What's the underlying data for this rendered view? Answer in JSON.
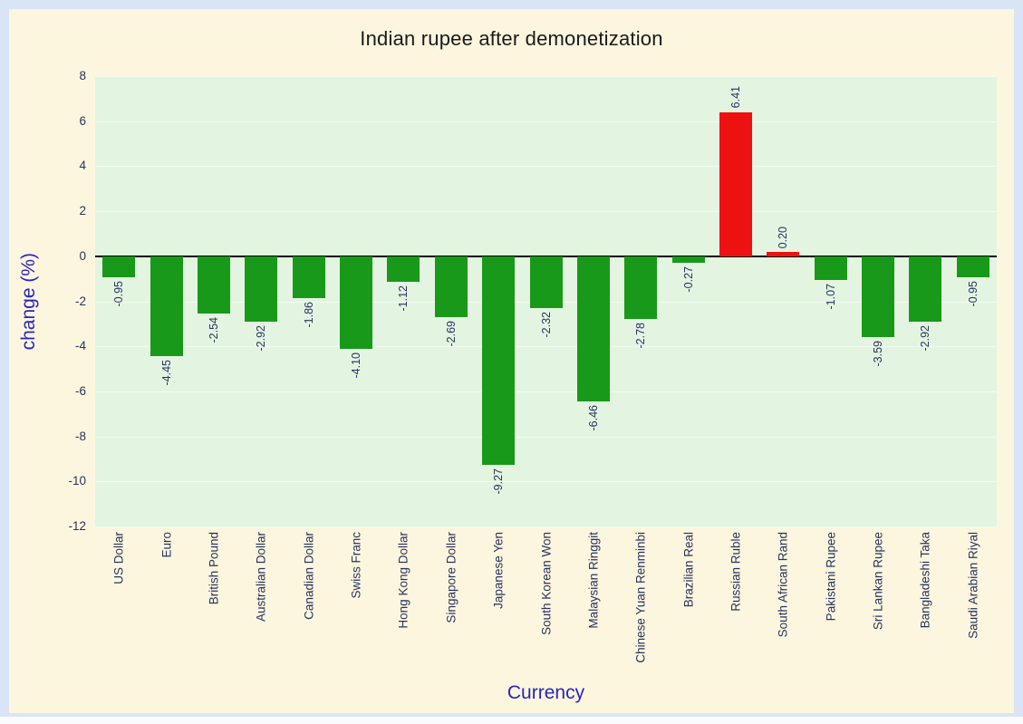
{
  "theme": {
    "page_bg": "#d9e5f6",
    "panel_bg": "#fdf6df",
    "plot_bg": "#e3f5e1",
    "title_color": "#1a1a1a",
    "axis_label_color": "#2626bf",
    "tick_label_color": "#28335e",
    "grid_color": "#f3fbf1",
    "zero_line_color": "#000000"
  },
  "chart_data": {
    "type": "bar",
    "title": "Indian rupee after demonetization",
    "xlabel": "Currency",
    "ylabel": "change (%)",
    "ylim": [
      -12,
      8
    ],
    "yticks": [
      8,
      6,
      4,
      2,
      0,
      -2,
      -4,
      -6,
      -8,
      -10,
      -12
    ],
    "ytick_labels": [
      "8",
      "6",
      "4",
      "2",
      "0",
      "-2",
      "-4",
      "-6",
      "-8",
      "-10",
      "-12"
    ],
    "grid": true,
    "legend": false,
    "bar_orientation": "vertical",
    "categories": [
      "US Dollar",
      "Euro",
      "British Pound",
      "Australian Dollar",
      "Canadian Dollar",
      "Swiss Franc",
      "Hong Kong Dollar",
      "Singapore Dollar",
      "Japanese Yen",
      "South Korean Won",
      "Malaysian Ringgit",
      "Chinese Yuan Renminbi",
      "Brazilian Real",
      "Russian Ruble",
      "South African Rand",
      "Pakistani Rupee",
      "Sri Lankan Rupee",
      "Bangladeshi Taka",
      "Saudi Arabian Riyal"
    ],
    "values": [
      -0.95,
      -4.45,
      -2.54,
      -2.92,
      -1.86,
      -4.1,
      -1.12,
      -2.69,
      -9.27,
      -2.32,
      -6.46,
      -2.78,
      -0.27,
      6.41,
      0.2,
      -1.07,
      -3.59,
      -2.92,
      -0.95
    ],
    "value_labels": [
      "-0.95",
      "-4.45",
      "-2.54",
      "-2.92",
      "-1.86",
      "-4.10",
      "-1.12",
      "-2.69",
      "-9.27",
      "-2.32",
      "-6.46",
      "-2.78",
      "-0.27",
      "6.41",
      "0.20",
      "-1.07",
      "-3.59",
      "-2.92",
      "-0.95"
    ],
    "colors": {
      "negative": "#199919",
      "positive": "#ee1111"
    }
  }
}
